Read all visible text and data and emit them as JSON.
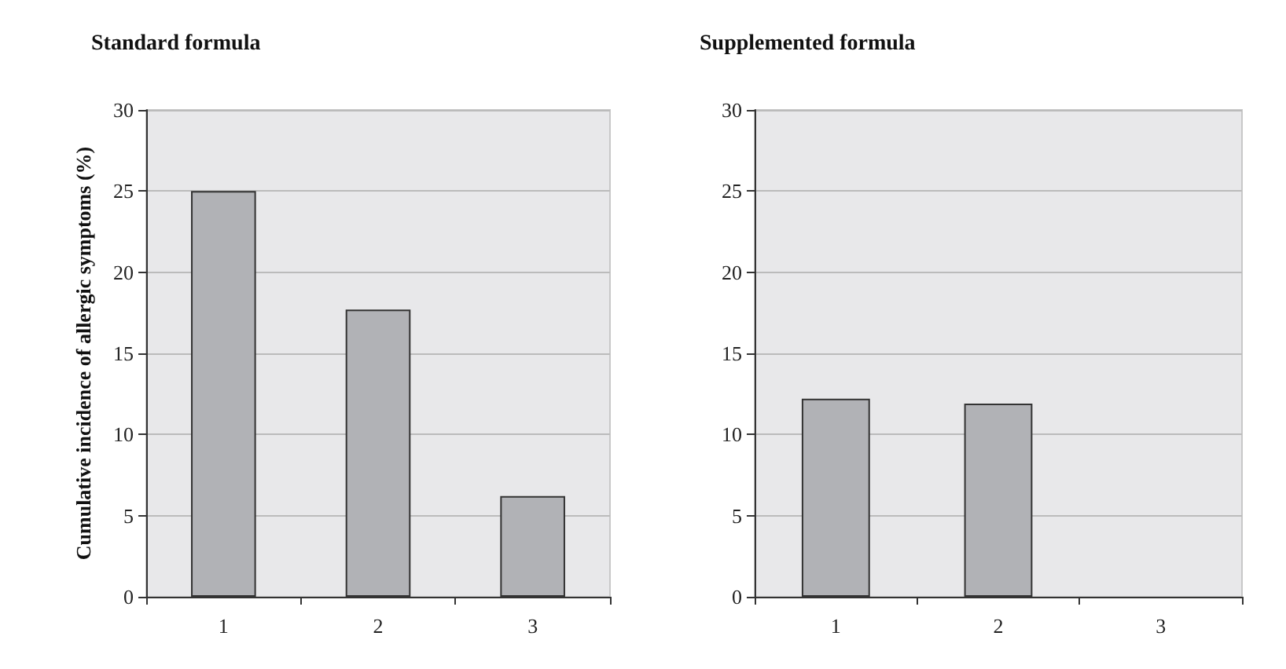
{
  "chart_data": [
    {
      "type": "bar",
      "title": "Standard formula",
      "ylabel": "Cumulative incidence of allergic symptoms (%)",
      "categories": [
        "1",
        "2",
        "3"
      ],
      "values": [
        25,
        17.7,
        6.2
      ],
      "color": "#b1b2b6",
      "ylim": [
        0,
        30
      ],
      "yticks": [
        0,
        5,
        10,
        15,
        20,
        25,
        30
      ],
      "grid": "y"
    },
    {
      "type": "bar",
      "title": "Supplemented formula",
      "categories": [
        "1",
        "2",
        "3"
      ],
      "values": [
        12.2,
        11.9,
        0
      ],
      "color": "#b1b2b6",
      "ylim": [
        0,
        30
      ],
      "yticks": [
        0,
        5,
        10,
        15,
        20,
        25,
        30
      ],
      "grid": "y"
    }
  ]
}
